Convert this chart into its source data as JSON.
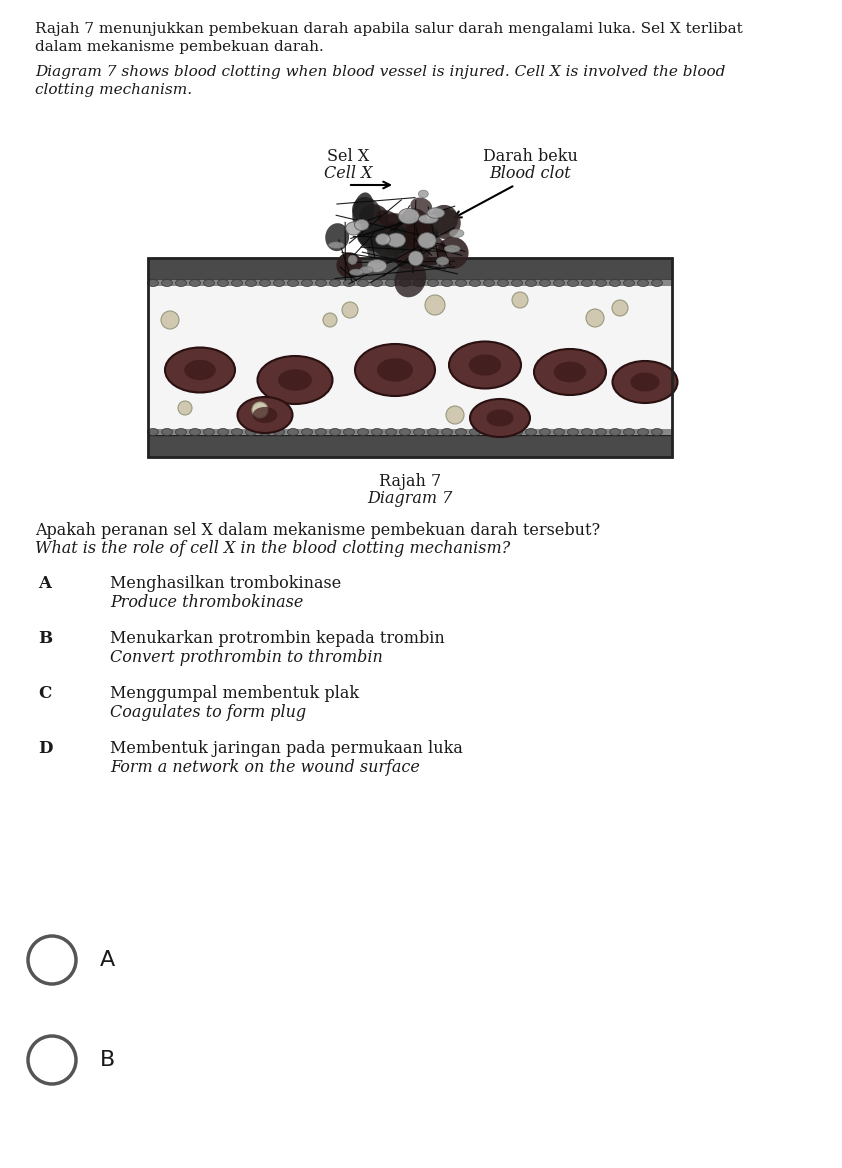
{
  "title_malay_line1": "Rajah 7 menunjukkan pembekuan darah apabila salur darah mengalami luka. Sel X terlibat",
  "title_malay_line2": "dalam mekanisme pembekuan darah.",
  "title_english_line1": "Diagram 7 shows blood clotting when blood vessel is injured. Cell X is involved the blood",
  "title_english_line2": "clotting mechanism.",
  "diagram_label_malay": "Rajah 7",
  "diagram_label_english": "Diagram 7",
  "label_sel_x_malay": "Sel X",
  "label_sel_x_english": "Cell X",
  "label_darah_beku_malay": "Darah beku",
  "label_darah_beku_english": "Blood clot",
  "question_malay": "Apakah peranan sel X dalam mekanisme pembekuan darah tersebut?",
  "question_english": "What is the role of cell X in the blood clotting mechanism?",
  "options": [
    {
      "letter": "A",
      "malay": "Menghasilkan trombokinase",
      "english": "Produce thrombokinase"
    },
    {
      "letter": "B",
      "malay": "Menukarkan protrombin kepada trombin",
      "english": "Convert prothrombin to thrombin"
    },
    {
      "letter": "C",
      "malay": "Menggumpal membentuk plak",
      "english": "Coagulates to form plug"
    },
    {
      "letter": "D",
      "malay": "Membentuk jaringan pada permukaan luka",
      "english": "Form a network on the wound surface"
    }
  ],
  "answer_circles": [
    "A",
    "B"
  ],
  "background_color": "#ffffff",
  "text_color": "#1a1a1a"
}
